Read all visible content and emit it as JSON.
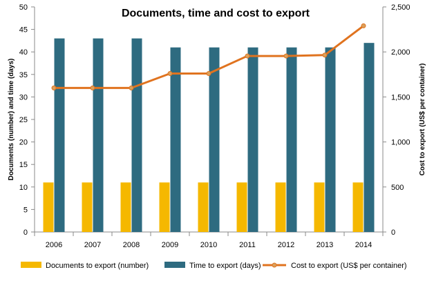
{
  "chart_data": {
    "type": "bar",
    "title": "Documents, time and cost to export",
    "categories": [
      "2006",
      "2007",
      "2008",
      "2009",
      "2010",
      "2011",
      "2012",
      "2013",
      "2014"
    ],
    "ylabel": "Documents (number) and time (days)",
    "y2label": "Cost to export (US$ per container)",
    "ylim": [
      0,
      50
    ],
    "y2lim": [
      0,
      2500
    ],
    "yticks": [
      "0",
      "5",
      "10",
      "15",
      "20",
      "25",
      "30",
      "35",
      "40",
      "45",
      "50"
    ],
    "y2ticks": [
      "0",
      "500",
      "1,000",
      "1,500",
      "2,000",
      "2,500"
    ],
    "grid": false,
    "legend_position": "bottom",
    "series": [
      {
        "name": "Documents to export (number)",
        "type": "bar",
        "axis": "left",
        "color": "#f5b800",
        "values": [
          11,
          11,
          11,
          11,
          11,
          11,
          11,
          11,
          11
        ]
      },
      {
        "name": "Time to export (days)",
        "type": "bar",
        "axis": "left",
        "color": "#2e6b80",
        "values": [
          43,
          43,
          43,
          41,
          41,
          41,
          41,
          41,
          42
        ]
      },
      {
        "name": "Cost to export (US$ per container)",
        "type": "line",
        "axis": "right",
        "color": "#e0731f",
        "values": [
          1600,
          1600,
          1600,
          1760,
          1760,
          1955,
          1955,
          1965,
          2290
        ]
      }
    ]
  }
}
